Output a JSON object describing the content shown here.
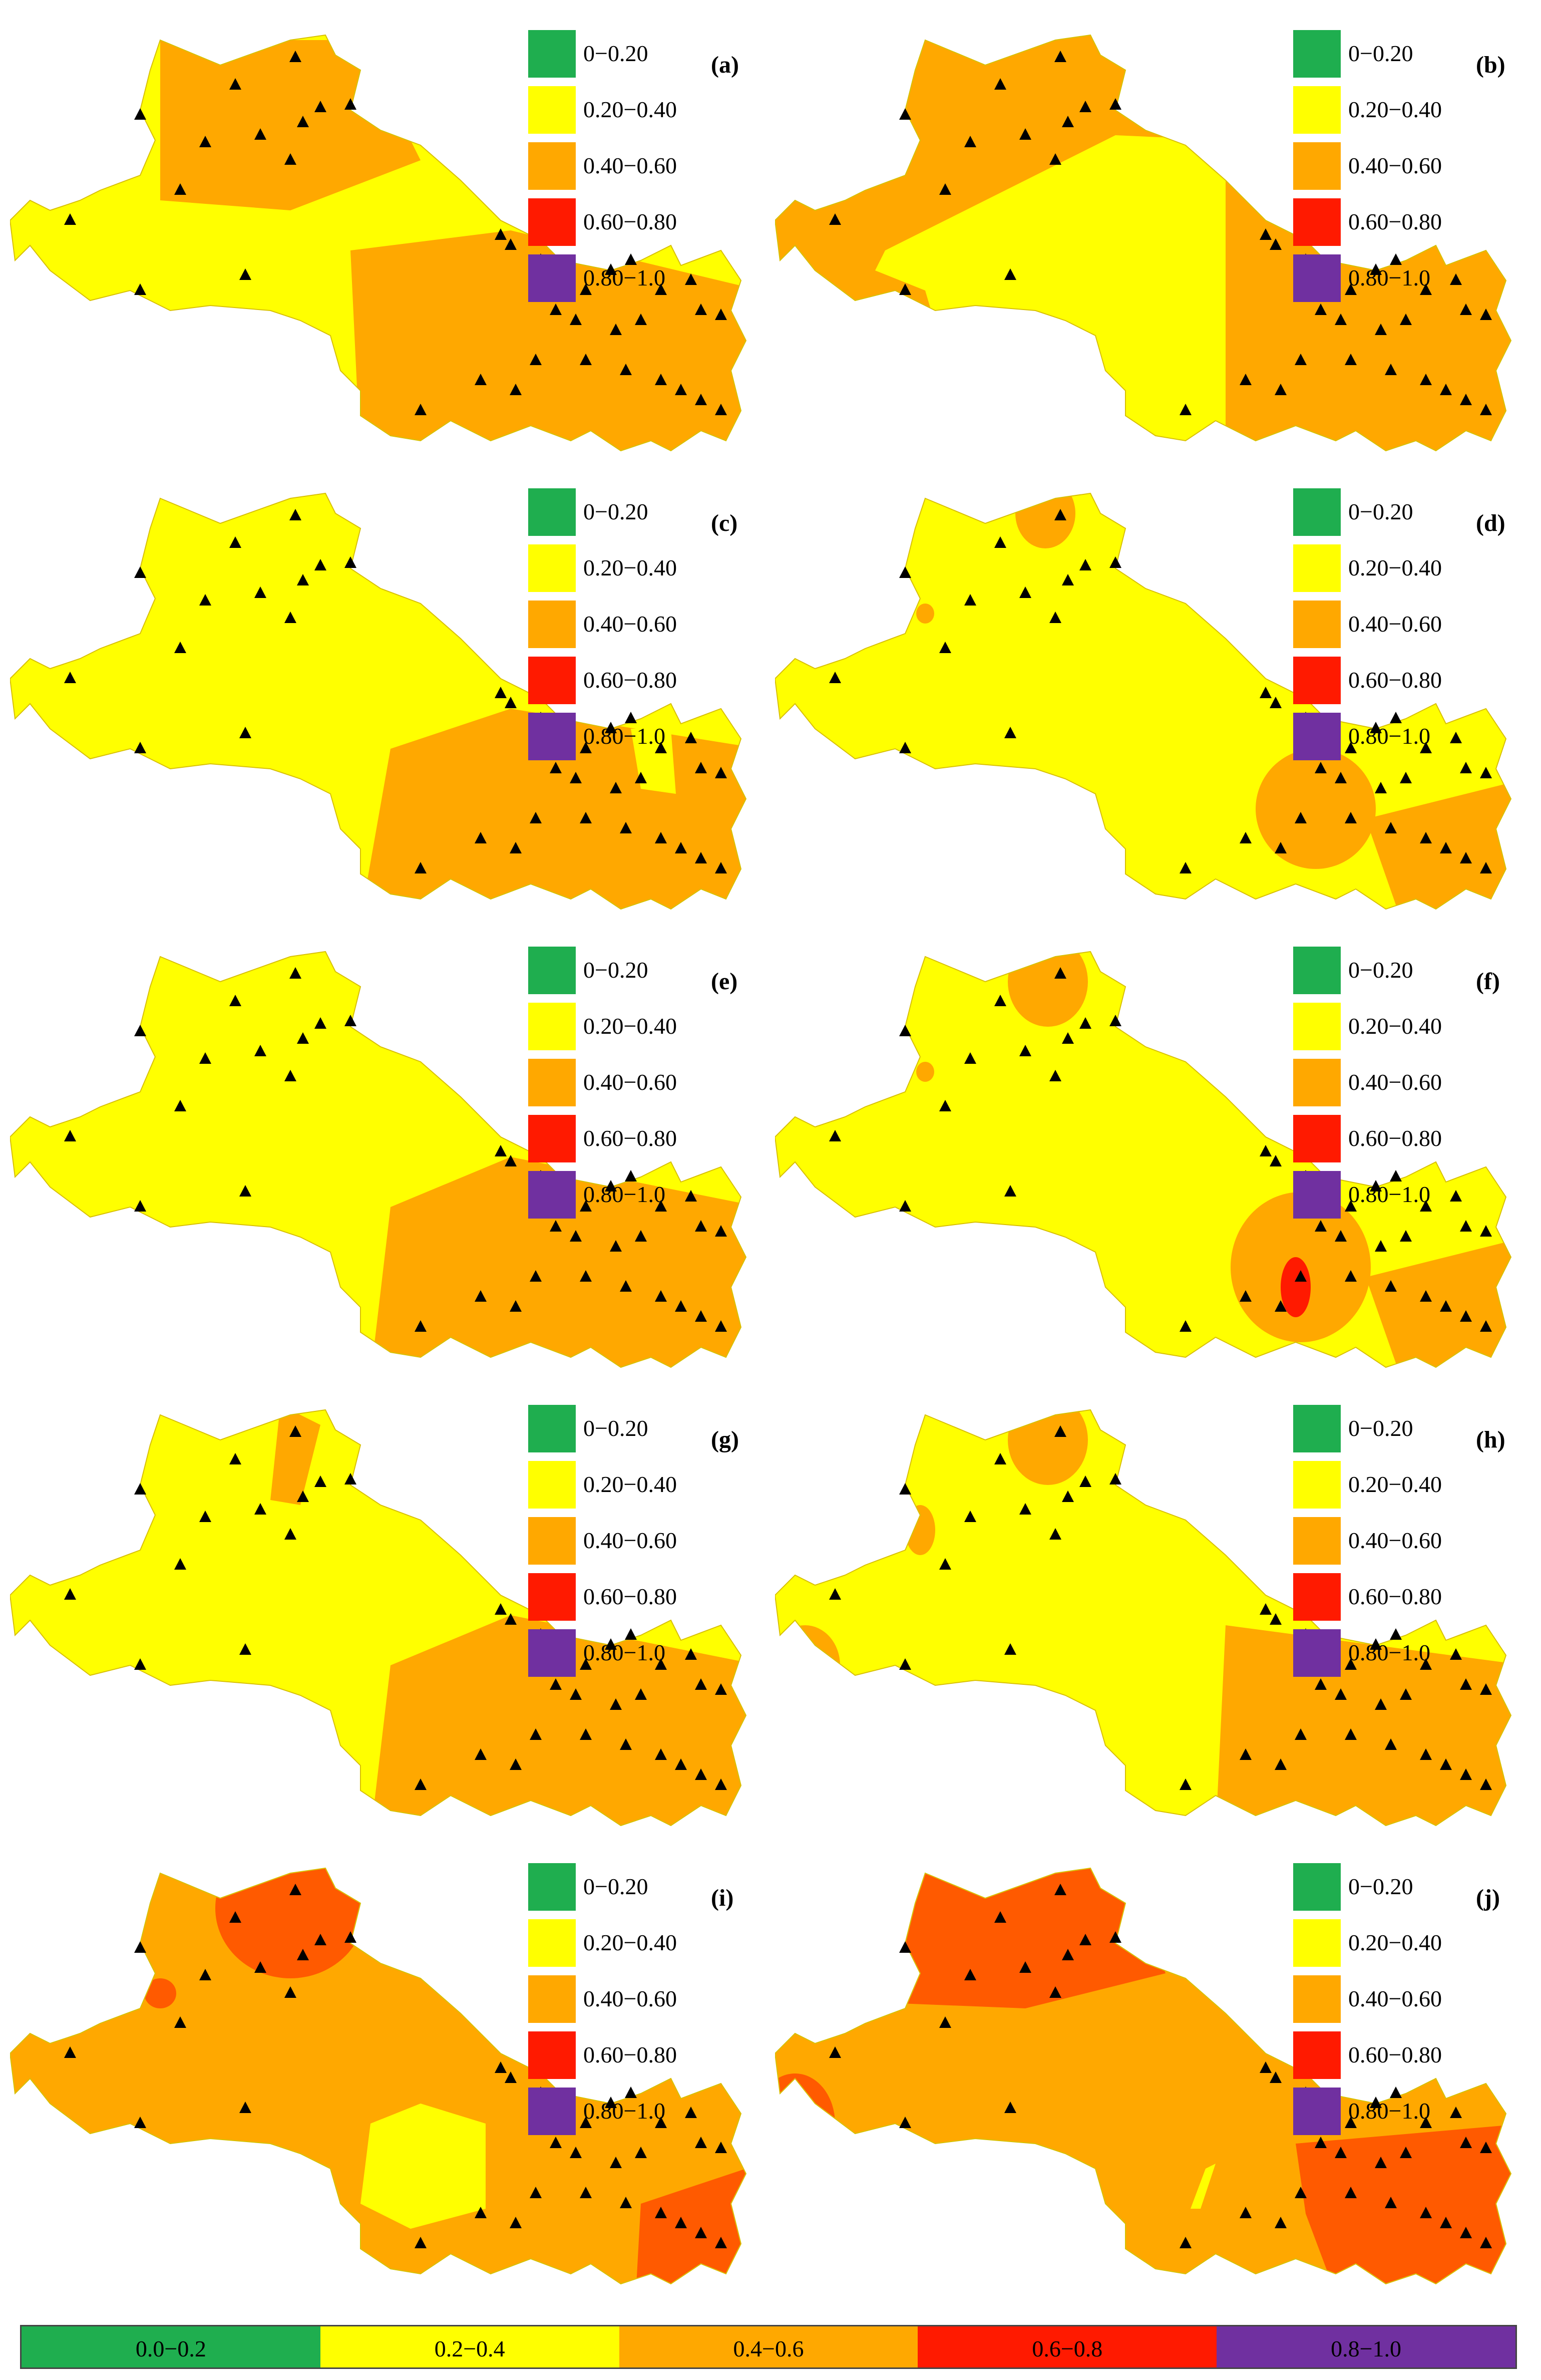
{
  "colors": {
    "green": "#1fae4f",
    "yellow": "#ffff00",
    "orange": "#ffa800",
    "red": "#ff1a00",
    "purple": "#7030a0",
    "deep_orange": "#ff5a00",
    "station_marker": "#000000"
  },
  "panel_legend": [
    {
      "label": "0−0.20",
      "color": "#1fae4f"
    },
    {
      "label": "0.20−0.40",
      "color": "#ffff00"
    },
    {
      "label": "0.40−0.60",
      "color": "#ffa800"
    },
    {
      "label": "0.60−0.80",
      "color": "#ff1a00"
    },
    {
      "label": "0.80−1.0",
      "color": "#7030a0"
    }
  ],
  "panels": [
    {
      "label": "(a)",
      "dominant_class": "0.40−0.60 / 0.20−0.40"
    },
    {
      "label": "(b)",
      "dominant_class": "0.40−0.60 / 0.20−0.40"
    },
    {
      "label": "(c)",
      "dominant_class": "0.20−0.40"
    },
    {
      "label": "(d)",
      "dominant_class": "0.20−0.40"
    },
    {
      "label": "(e)",
      "dominant_class": "0.20−0.40"
    },
    {
      "label": "(f)",
      "dominant_class": "0.20−0.40"
    },
    {
      "label": "(g)",
      "dominant_class": "0.20−0.40"
    },
    {
      "label": "(h)",
      "dominant_class": "0.20−0.40"
    },
    {
      "label": "(i)",
      "dominant_class": "0.40−0.60"
    },
    {
      "label": "(j)",
      "dominant_class": "0.40−0.60"
    }
  ],
  "bottom_legend": [
    {
      "label": "0.0−0.2",
      "color": "#1fae4f"
    },
    {
      "label": "0.2−0.4",
      "color": "#ffff00"
    },
    {
      "label": "0.4−0.6",
      "color": "#ffa800"
    },
    {
      "label": "0.6−0.8",
      "color": "#ff1a00"
    },
    {
      "label": "0.8−1.0",
      "color": "#7030a0"
    }
  ],
  "marker_icon": "triangle-station-icon"
}
